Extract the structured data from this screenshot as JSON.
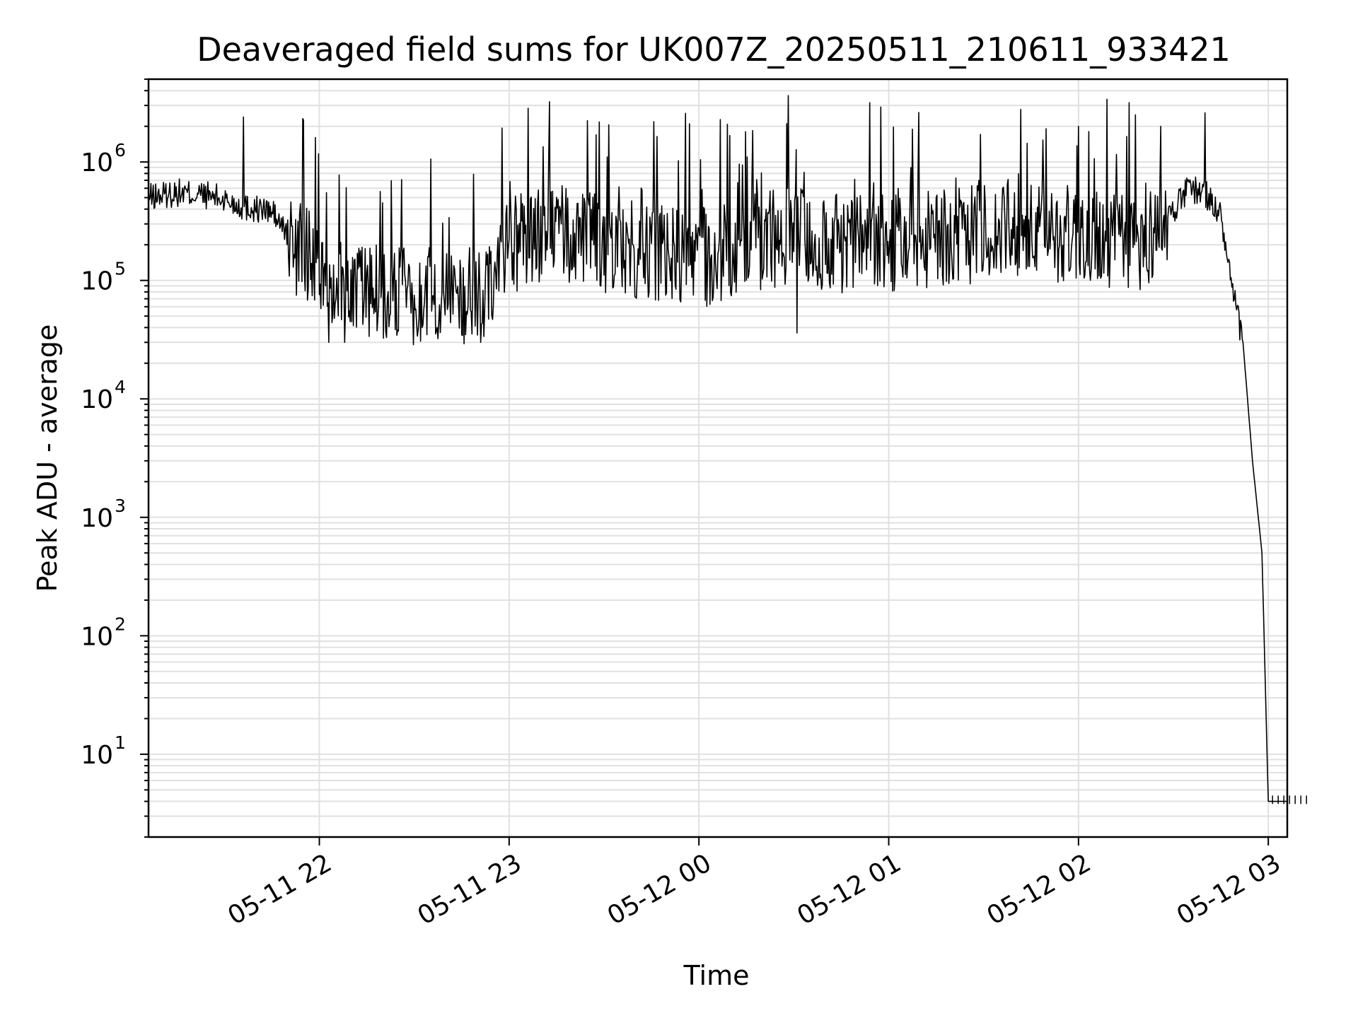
{
  "chart_data": {
    "type": "line",
    "title": "Deaveraged field sums for UK007Z_20250511_210611_933421",
    "xlabel": "Time",
    "ylabel": "Peak ADU - average",
    "yscale": "log",
    "ylim": [
      2,
      5000000
    ],
    "xlim": [
      "2025-05-11 21:06",
      "2025-05-12 03:06"
    ],
    "grid": true,
    "line_color": "#000000",
    "grid_color": "#e0e0e0",
    "x_ticks": [
      {
        "label": "05-11 22",
        "value": "2025-05-11 22:00"
      },
      {
        "label": "05-11 23",
        "value": "2025-05-11 23:00"
      },
      {
        "label": "05-12 00",
        "value": "2025-05-12 00:00"
      },
      {
        "label": "05-12 01",
        "value": "2025-05-12 01:00"
      },
      {
        "label": "05-12 02",
        "value": "2025-05-12 02:00"
      },
      {
        "label": "05-12 03",
        "value": "2025-05-12 03:00"
      }
    ],
    "y_ticks": [
      {
        "base": "10",
        "exp": "1",
        "value": 10
      },
      {
        "base": "10",
        "exp": "2",
        "value": 100
      },
      {
        "base": "10",
        "exp": "3",
        "value": 1000
      },
      {
        "base": "10",
        "exp": "4",
        "value": 10000
      },
      {
        "base": "10",
        "exp": "5",
        "value": 100000
      },
      {
        "base": "10",
        "exp": "6",
        "value": 1000000
      }
    ],
    "series": [
      {
        "x": [
          "2025-05-11 21:06",
          "2025-05-11 21:15",
          "2025-05-11 21:25",
          "2025-05-11 21:30",
          "2025-05-11 21:36",
          "2025-05-11 21:45",
          "2025-05-11 21:52",
          "2025-05-11 22:00",
          "2025-05-11 22:10",
          "2025-05-11 22:20",
          "2025-05-11 22:30",
          "2025-05-11 22:40",
          "2025-05-11 22:50",
          "2025-05-11 23:00",
          "2025-05-11 23:15",
          "2025-05-11 23:30",
          "2025-05-11 23:45",
          "2025-05-12 00:00",
          "2025-05-12 00:15",
          "2025-05-12 00:30",
          "2025-05-12 00:45",
          "2025-05-12 01:00",
          "2025-05-12 01:15",
          "2025-05-12 01:30",
          "2025-05-12 01:45",
          "2025-05-12 02:00",
          "2025-05-12 02:10",
          "2025-05-12 02:20",
          "2025-05-12 02:30",
          "2025-05-12 02:35",
          "2025-05-12 02:40",
          "2025-05-12 02:45",
          "2025-05-12 02:48",
          "2025-05-12 02:52",
          "2025-05-12 02:55",
          "2025-05-12 02:58",
          "2025-05-12 03:00",
          "2025-05-12 03:06"
        ],
        "y": [
          500000,
          550000,
          520000,
          480000,
          420000,
          380000,
          200000,
          120000,
          90000,
          80000,
          75000,
          80000,
          70000,
          200000,
          250000,
          200000,
          180000,
          150000,
          200000,
          250000,
          200000,
          200000,
          220000,
          250000,
          250000,
          250000,
          220000,
          200000,
          400000,
          600000,
          550000,
          350000,
          100000,
          30000,
          3000,
          500,
          4,
          4
        ],
        "peaks": [
          {
            "x": "2025-05-11 21:36",
            "y": 2400000
          },
          {
            "x": "2025-05-11 23:57",
            "y": 2100000
          },
          {
            "x": "2025-05-12 02:00",
            "y": 2000000
          },
          {
            "x": "2025-05-12 02:18",
            "y": 2500000
          },
          {
            "x": "2025-05-12 02:26",
            "y": 2000000
          },
          {
            "x": "2025-05-12 02:40",
            "y": 2600000
          }
        ],
        "troughs": [
          {
            "x": "2025-05-11 22:03",
            "y": 30000
          },
          {
            "x": "2025-05-11 22:08",
            "y": 30000
          },
          {
            "x": "2025-05-11 22:51",
            "y": 30000
          },
          {
            "x": "2025-05-12 00:31",
            "y": 36000
          }
        ]
      }
    ]
  }
}
